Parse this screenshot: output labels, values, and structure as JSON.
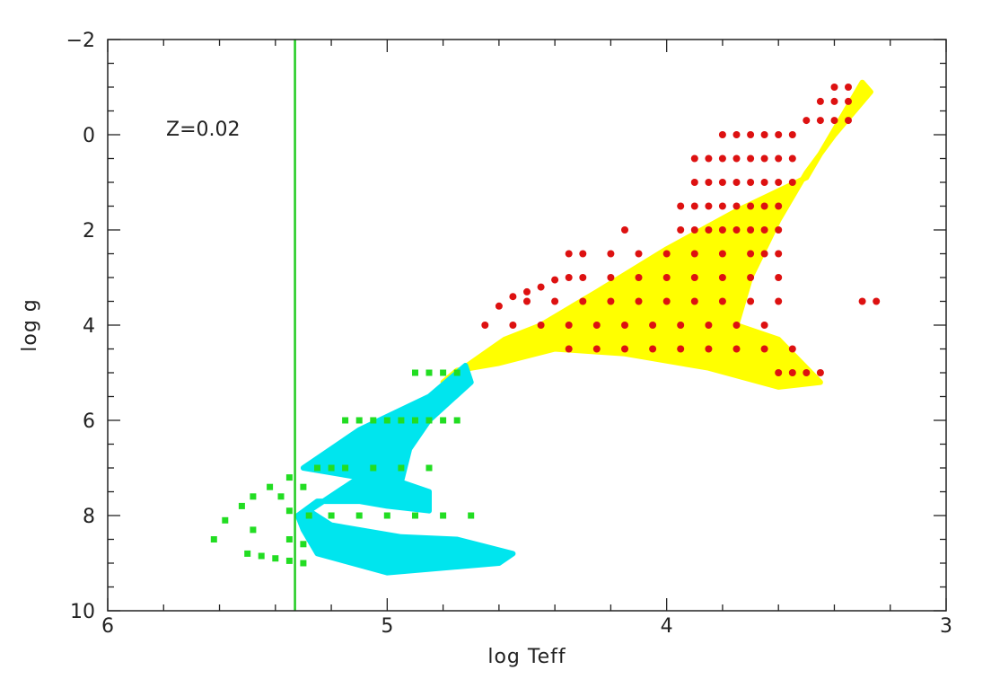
{
  "chart_data": {
    "type": "scatter",
    "xlabel": "log Teff",
    "ylabel": "log g",
    "annotation": "Z=0.02",
    "xlim": [
      6,
      3
    ],
    "ylim": [
      10,
      -2
    ],
    "x_ticks": [
      {
        "value": 6,
        "label": "6"
      },
      {
        "value": 5,
        "label": "5"
      },
      {
        "value": 4,
        "label": "4"
      },
      {
        "value": 3,
        "label": "3"
      }
    ],
    "y_ticks": [
      {
        "value": -2,
        "label": "−2"
      },
      {
        "value": 0,
        "label": "0"
      },
      {
        "value": 2,
        "label": "2"
      },
      {
        "value": 4,
        "label": "4"
      },
      {
        "value": 6,
        "label": "6"
      },
      {
        "value": 8,
        "label": "8"
      },
      {
        "value": 10,
        "label": "10"
      }
    ],
    "vertical_line": {
      "x": 5.33,
      "color": "#22cc22"
    },
    "regions": [
      {
        "color": "#ffff00",
        "polygon": [
          [
            4.45,
            4.0
          ],
          [
            4.25,
            3.3
          ],
          [
            4.0,
            2.4
          ],
          [
            3.75,
            1.6
          ],
          [
            3.5,
            0.9
          ],
          [
            3.3,
            -1.1
          ],
          [
            3.27,
            -0.9
          ],
          [
            3.4,
            0.0
          ],
          [
            3.5,
            0.8
          ],
          [
            3.6,
            1.8
          ],
          [
            3.7,
            3.0
          ],
          [
            3.75,
            4.0
          ],
          [
            3.6,
            4.3
          ],
          [
            3.45,
            5.2
          ],
          [
            3.6,
            5.3
          ],
          [
            3.85,
            4.9
          ],
          [
            4.15,
            4.6
          ],
          [
            4.4,
            4.5
          ],
          [
            4.6,
            4.8
          ],
          [
            4.75,
            4.95
          ],
          [
            4.8,
            5.2
          ],
          [
            4.75,
            5.0
          ],
          [
            4.58,
            4.3
          ]
        ]
      },
      {
        "color": "#00e5ee",
        "polygon": [
          [
            5.3,
            7.0
          ],
          [
            5.1,
            6.2
          ],
          [
            4.85,
            5.5
          ],
          [
            4.72,
            4.85
          ],
          [
            4.7,
            5.2
          ],
          [
            4.85,
            6.0
          ],
          [
            4.92,
            6.6
          ],
          [
            4.95,
            7.3
          ],
          [
            4.85,
            7.5
          ],
          [
            4.85,
            7.9
          ],
          [
            5.0,
            7.8
          ],
          [
            5.1,
            7.7
          ],
          [
            5.25,
            7.7
          ],
          [
            5.32,
            8.0
          ],
          [
            5.3,
            8.3
          ],
          [
            5.25,
            8.8
          ],
          [
            5.0,
            9.2
          ],
          [
            4.6,
            9.0
          ],
          [
            4.55,
            8.8
          ],
          [
            4.75,
            8.5
          ],
          [
            4.95,
            8.45
          ],
          [
            5.2,
            8.2
          ],
          [
            5.28,
            7.9
          ],
          [
            5.1,
            7.2
          ]
        ]
      }
    ],
    "series": [
      {
        "color": "#dd1111",
        "points": [
          [
            3.35,
            -1.0
          ],
          [
            3.4,
            -1.0
          ],
          [
            3.35,
            -0.7
          ],
          [
            3.4,
            -0.7
          ],
          [
            3.45,
            -0.7
          ],
          [
            3.35,
            -0.3
          ],
          [
            3.4,
            -0.3
          ],
          [
            3.45,
            -0.3
          ],
          [
            3.5,
            -0.3
          ],
          [
            3.55,
            0.0
          ],
          [
            3.6,
            0.0
          ],
          [
            3.65,
            0.0
          ],
          [
            3.7,
            0.0
          ],
          [
            3.75,
            0.0
          ],
          [
            3.8,
            0.0
          ],
          [
            3.55,
            0.5
          ],
          [
            3.6,
            0.5
          ],
          [
            3.65,
            0.5
          ],
          [
            3.7,
            0.5
          ],
          [
            3.75,
            0.5
          ],
          [
            3.8,
            0.5
          ],
          [
            3.85,
            0.5
          ],
          [
            3.9,
            0.5
          ],
          [
            3.55,
            1.0
          ],
          [
            3.6,
            1.0
          ],
          [
            3.65,
            1.0
          ],
          [
            3.7,
            1.0
          ],
          [
            3.75,
            1.0
          ],
          [
            3.8,
            1.0
          ],
          [
            3.85,
            1.0
          ],
          [
            3.9,
            1.0
          ],
          [
            3.6,
            1.5
          ],
          [
            3.65,
            1.5
          ],
          [
            3.7,
            1.5
          ],
          [
            3.75,
            1.5
          ],
          [
            3.8,
            1.5
          ],
          [
            3.85,
            1.5
          ],
          [
            3.9,
            1.5
          ],
          [
            3.95,
            1.5
          ],
          [
            3.6,
            2.0
          ],
          [
            3.65,
            2.0
          ],
          [
            3.7,
            2.0
          ],
          [
            3.75,
            2.0
          ],
          [
            3.8,
            2.0
          ],
          [
            3.85,
            2.0
          ],
          [
            3.9,
            2.0
          ],
          [
            3.95,
            2.0
          ],
          [
            4.15,
            2.0
          ],
          [
            3.6,
            2.5
          ],
          [
            3.65,
            2.5
          ],
          [
            3.7,
            2.5
          ],
          [
            3.8,
            2.5
          ],
          [
            3.9,
            2.5
          ],
          [
            4.0,
            2.5
          ],
          [
            4.1,
            2.5
          ],
          [
            4.2,
            2.5
          ],
          [
            4.3,
            2.5
          ],
          [
            4.35,
            2.5
          ],
          [
            3.6,
            3.0
          ],
          [
            3.7,
            3.0
          ],
          [
            3.8,
            3.0
          ],
          [
            3.9,
            3.0
          ],
          [
            4.0,
            3.0
          ],
          [
            4.1,
            3.0
          ],
          [
            4.2,
            3.0
          ],
          [
            4.3,
            3.0
          ],
          [
            4.35,
            3.0
          ],
          [
            4.4,
            3.05
          ],
          [
            4.45,
            3.2
          ],
          [
            4.5,
            3.3
          ],
          [
            4.55,
            3.4
          ],
          [
            4.6,
            3.6
          ],
          [
            3.6,
            3.5
          ],
          [
            3.7,
            3.5
          ],
          [
            3.8,
            3.5
          ],
          [
            3.9,
            3.5
          ],
          [
            4.0,
            3.5
          ],
          [
            4.1,
            3.5
          ],
          [
            4.2,
            3.5
          ],
          [
            4.3,
            3.5
          ],
          [
            4.4,
            3.5
          ],
          [
            4.5,
            3.5
          ],
          [
            3.65,
            4.0
          ],
          [
            3.75,
            4.0
          ],
          [
            3.85,
            4.0
          ],
          [
            3.95,
            4.0
          ],
          [
            4.05,
            4.0
          ],
          [
            4.15,
            4.0
          ],
          [
            4.25,
            4.0
          ],
          [
            4.35,
            4.0
          ],
          [
            4.45,
            4.0
          ],
          [
            4.55,
            4.0
          ],
          [
            4.65,
            4.0
          ],
          [
            3.55,
            4.5
          ],
          [
            3.65,
            4.5
          ],
          [
            3.75,
            4.5
          ],
          [
            3.85,
            4.5
          ],
          [
            3.95,
            4.5
          ],
          [
            4.05,
            4.5
          ],
          [
            4.15,
            4.5
          ],
          [
            4.25,
            4.5
          ],
          [
            4.35,
            4.5
          ],
          [
            3.45,
            5.0
          ],
          [
            3.5,
            5.0
          ],
          [
            3.55,
            5.0
          ],
          [
            3.6,
            5.0
          ],
          [
            3.3,
            3.5
          ],
          [
            3.25,
            3.5
          ]
        ]
      },
      {
        "color": "#22dd22",
        "points": [
          [
            4.75,
            5.0
          ],
          [
            4.8,
            5.0
          ],
          [
            4.85,
            5.0
          ],
          [
            4.9,
            5.0
          ],
          [
            4.75,
            6.0
          ],
          [
            4.8,
            6.0
          ],
          [
            4.85,
            6.0
          ],
          [
            4.9,
            6.0
          ],
          [
            4.95,
            6.0
          ],
          [
            5.0,
            6.0
          ],
          [
            5.05,
            6.0
          ],
          [
            5.1,
            6.0
          ],
          [
            5.15,
            6.0
          ],
          [
            4.85,
            7.0
          ],
          [
            4.95,
            7.0
          ],
          [
            5.05,
            7.0
          ],
          [
            5.15,
            7.0
          ],
          [
            5.2,
            7.0
          ],
          [
            5.25,
            7.0
          ],
          [
            4.7,
            8.0
          ],
          [
            4.8,
            8.0
          ],
          [
            4.9,
            8.0
          ],
          [
            5.0,
            8.0
          ],
          [
            5.1,
            8.0
          ],
          [
            5.2,
            8.0
          ],
          [
            5.28,
            8.0
          ],
          [
            5.35,
            7.2
          ],
          [
            5.3,
            7.4
          ],
          [
            5.42,
            7.4
          ],
          [
            5.48,
            7.6
          ],
          [
            5.38,
            7.6
          ],
          [
            5.52,
            7.8
          ],
          [
            5.35,
            7.9
          ],
          [
            5.58,
            8.1
          ],
          [
            5.62,
            8.5
          ],
          [
            5.48,
            8.3
          ],
          [
            5.35,
            8.5
          ],
          [
            5.3,
            8.6
          ],
          [
            5.5,
            8.8
          ],
          [
            5.45,
            8.85
          ],
          [
            5.4,
            8.9
          ],
          [
            5.35,
            8.95
          ],
          [
            5.3,
            9.0
          ]
        ]
      }
    ]
  }
}
